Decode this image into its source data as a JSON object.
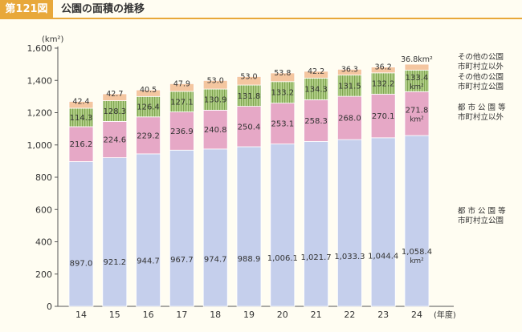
{
  "header": {
    "figure_no": "第121図",
    "title": "公園の面積の推移"
  },
  "chart_data": {
    "type": "bar",
    "stacked": true,
    "categories": [
      "14",
      "15",
      "16",
      "17",
      "18",
      "19",
      "20",
      "21",
      "22",
      "23",
      "24"
    ],
    "x_unit": "(年度)",
    "y_unit": "(km²)",
    "ylim": [
      0,
      1600
    ],
    "yticks": [
      "0",
      "200",
      "400",
      "600",
      "800",
      "1,000",
      "1,200",
      "1,400",
      "1,600"
    ],
    "series": [
      {
        "key": "city_park_municipal",
        "color": "#c5cfec",
        "values": [
          897.0,
          921.2,
          944.7,
          967.7,
          974.7,
          988.9,
          1006.1,
          1021.7,
          1033.3,
          1044.4,
          1058.4
        ],
        "labels": [
          "897.0",
          "921.2",
          "944.7",
          "967.7",
          "974.7",
          "988.9",
          "1,006.1",
          "1,021.7",
          "1,033.3",
          "1,044.4",
          "1,058.4"
        ]
      },
      {
        "key": "city_park_non_municipal",
        "color": "#e6a8c6",
        "values": [
          216.2,
          224.6,
          229.2,
          236.9,
          240.8,
          250.4,
          253.1,
          258.3,
          268.0,
          270.1,
          271.8
        ],
        "labels": [
          "216.2",
          "224.6",
          "229.2",
          "236.9",
          "240.8",
          "250.4",
          "253.1",
          "258.3",
          "268.0",
          "270.1",
          "271.8"
        ]
      },
      {
        "key": "other_park_municipal",
        "color": "#b4d08c",
        "values": [
          114.3,
          128.3,
          126.4,
          127.1,
          130.9,
          131.8,
          133.2,
          134.3,
          131.5,
          132.2,
          133.4
        ],
        "labels": [
          "114.3",
          "128.3",
          "126.4",
          "127.1",
          "130.9",
          "131.8",
          "133.2",
          "134.3",
          "131.5",
          "132.2",
          "133.4"
        ]
      },
      {
        "key": "other_park_non_municipal",
        "color": "#f4c6a0",
        "values": [
          42.4,
          42.7,
          40.5,
          47.9,
          53.0,
          53.0,
          53.8,
          42.2,
          36.3,
          36.2,
          36.8
        ],
        "labels": [
          "42.4",
          "42.7",
          "40.5",
          "47.9",
          "53.0",
          "53.0",
          "53.8",
          "42.2",
          "36.3",
          "36.2",
          "36.8"
        ]
      }
    ],
    "last_bar_unit": "km²",
    "legend": [
      {
        "line1": "その他の公園",
        "line2": "市町村立以外"
      },
      {
        "line1": "その他の公園",
        "line2": "市町村立公園"
      },
      {
        "line1": "都 市 公 園 等",
        "line2": "市町村立以外"
      },
      {
        "line1": "都 市 公 園 等",
        "line2": "市町村立公園"
      }
    ],
    "grid": false,
    "legend_placement": "right"
  }
}
